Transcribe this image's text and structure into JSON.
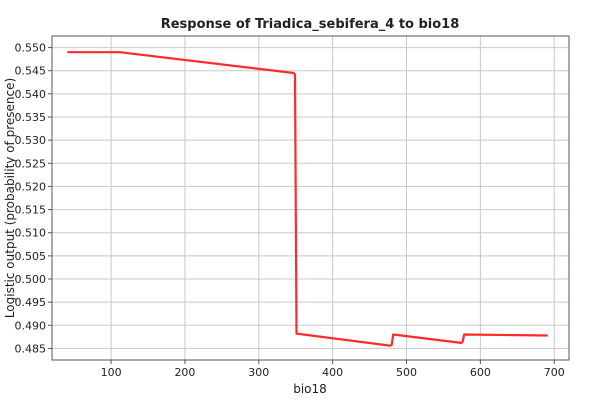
{
  "chart_data": {
    "type": "line",
    "title": "Response of Triadica_sebifera_4 to bio18",
    "xlabel": "bio18",
    "ylabel": "Logistic output (probability of presence)",
    "xlim": [
      20,
      720
    ],
    "ylim": [
      0.4825,
      0.5525
    ],
    "x_ticks": [
      100,
      200,
      300,
      400,
      500,
      600,
      700
    ],
    "y_ticks": [
      0.485,
      0.49,
      0.495,
      0.5,
      0.505,
      0.51,
      0.515,
      0.52,
      0.525,
      0.53,
      0.535,
      0.54,
      0.545,
      0.55
    ],
    "x_tick_labels": [
      "100",
      "200",
      "300",
      "400",
      "500",
      "600",
      "700"
    ],
    "y_tick_labels": [
      "0.485",
      "0.490",
      "0.495",
      "0.500",
      "0.505",
      "0.510",
      "0.515",
      "0.520",
      "0.525",
      "0.530",
      "0.535",
      "0.540",
      "0.545",
      "0.550"
    ],
    "grid": true,
    "series": [
      {
        "color": "#ff2a2a",
        "x": [
          42,
          112,
          347,
          349,
          351,
          478,
          480,
          482,
          574,
          576,
          578,
          690
        ],
        "y": [
          0.549,
          0.549,
          0.5445,
          0.5442,
          0.4882,
          0.4856,
          0.4858,
          0.488,
          0.4862,
          0.4864,
          0.488,
          0.4878
        ]
      }
    ]
  }
}
